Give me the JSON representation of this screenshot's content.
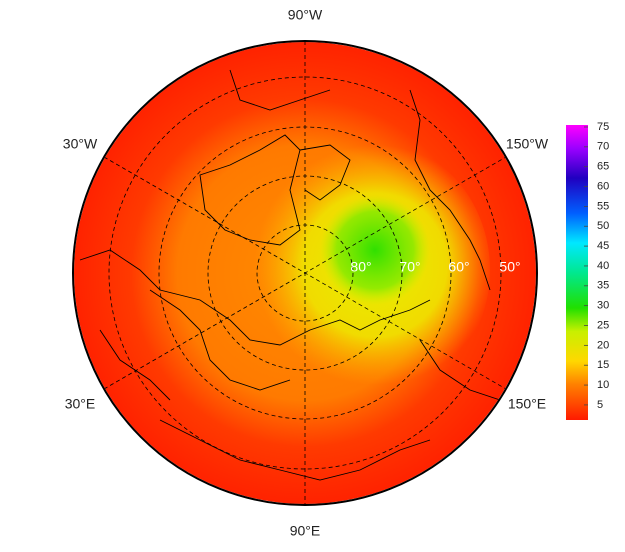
{
  "map": {
    "meridian_labels": [
      "90°W",
      "30°W",
      "150°W",
      "30°E",
      "150°E",
      "90°E"
    ],
    "latitude_labels": [
      "80°",
      "70°",
      "60°",
      "50°"
    ],
    "colorbar": {
      "lim": [
        1.2,
        75.5
      ],
      "ticks": [
        5,
        10,
        15,
        20,
        25,
        30,
        35,
        40,
        45,
        50,
        55,
        60,
        65,
        70,
        75
      ]
    }
  }
}
